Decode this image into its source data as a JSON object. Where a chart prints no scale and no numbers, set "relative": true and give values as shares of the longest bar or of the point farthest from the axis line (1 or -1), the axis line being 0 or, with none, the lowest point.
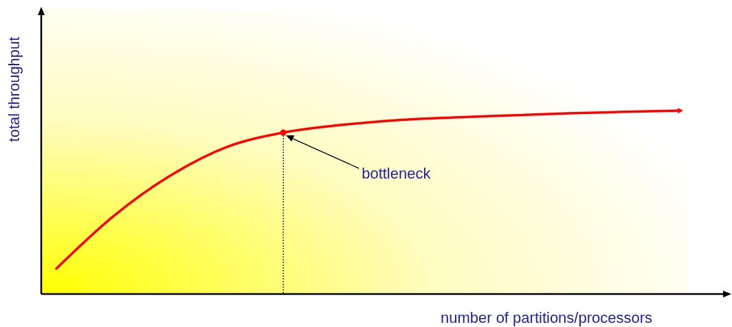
{
  "chart_data": {
    "type": "line",
    "relative": true,
    "xlabel": "number of partitions/processors",
    "ylabel": "total throughput",
    "categories": [
      null,
      null,
      null,
      null,
      null,
      null,
      null,
      null,
      null,
      null,
      null,
      null
    ],
    "series": [
      {
        "color": "#ff0000",
        "values": [
          0.139,
          0.423,
          0.644,
          0.801,
          0.88,
          0.921,
          0.948,
          0.963,
          0.974,
          0.985,
          0.993,
          1
        ]
      }
    ],
    "annotations": [
      "bottleneck"
    ],
    "marker": "none",
    "line_style": "solid",
    "grid": false
  }
}
